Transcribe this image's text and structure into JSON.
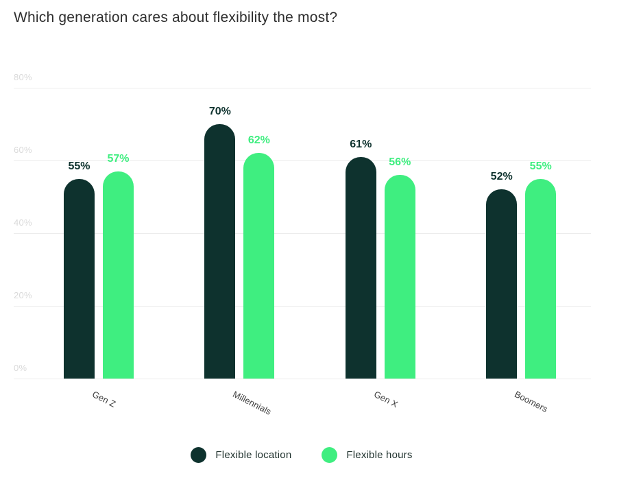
{
  "chart_data": {
    "type": "bar",
    "title": "Which generation cares about flexibility the most?",
    "categories": [
      "Gen Z",
      "Millennials",
      "Gen X",
      "Boomers"
    ],
    "series": [
      {
        "name": "Flexible location",
        "color": "#0E322E",
        "values": [
          55,
          70,
          61,
          52
        ]
      },
      {
        "name": "Flexible hours",
        "color": "#3FEE80",
        "values": [
          57,
          62,
          56,
          55
        ]
      }
    ],
    "value_label_suffix": "%",
    "y_ticks": [
      {
        "label": "80%",
        "value": 80
      },
      {
        "label": "60%",
        "value": 60
      },
      {
        "label": "40%",
        "value": 40
      },
      {
        "label": "20%",
        "value": 20
      },
      {
        "label": "0%",
        "value": 0
      }
    ],
    "ylim": [
      0,
      80
    ],
    "grid": true,
    "legend_position": "bottom",
    "colors": {
      "grid": "#ECECEC",
      "tick_label": "#D9D9D9",
      "axis_label": "#3F3F3F",
      "title": "#2E2E2E",
      "legend_text": "#1E302C",
      "background": "#FFFFFF"
    }
  }
}
